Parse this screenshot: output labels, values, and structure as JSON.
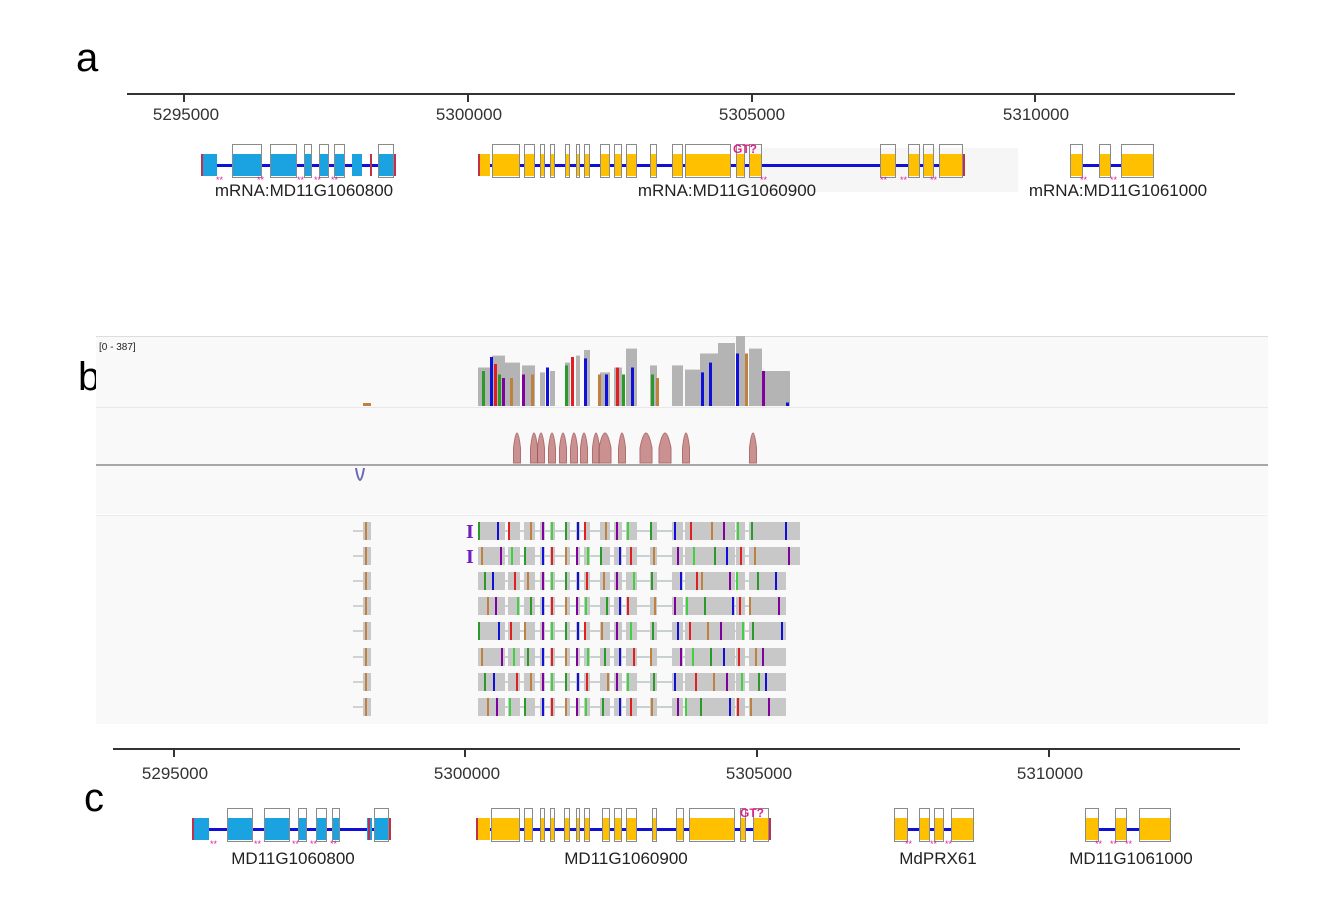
{
  "panels": {
    "a": {
      "letter": "a"
    },
    "b": {
      "letter": "b",
      "coverage_range": "[0 - 387]"
    },
    "c": {
      "letter": "c"
    }
  },
  "chart_data": {
    "type": "genome-browser",
    "units": "bp",
    "axis_ticks": [
      "5295000",
      "5300000",
      "5305000",
      "5310000"
    ],
    "panel_a": {
      "genes": [
        {
          "name": "mRNA:MD11G1060800",
          "color": "#1aa3e0",
          "start": 5294900,
          "end": 5298450,
          "exons": 8
        },
        {
          "name": "mRNA:MD11G1060900",
          "color": "#ffc000",
          "start": 5300250,
          "end": 5308700,
          "exons": 22,
          "annotation": "GT?"
        },
        {
          "name": "mRNA:MD11G1061000",
          "color": "#ffc000",
          "start": 5310600,
          "end": 5312100,
          "exons": 3
        }
      ]
    },
    "panel_b": {
      "tracks": [
        "coverage",
        "junctions-forward",
        "junctions-reverse",
        "alignments"
      ],
      "coverage_max": 387,
      "junction_peaks_forward": 14,
      "junction_peaks_reverse": 1,
      "read_rows": 8
    },
    "panel_c": {
      "genes": [
        {
          "name": "MD11G1060800",
          "color": "#1aa3e0",
          "start": 5294700,
          "end": 5298450,
          "exons": 8
        },
        {
          "name": "MD11G1060900",
          "color": "#ffc000",
          "start": 5300250,
          "end": 5305250,
          "exons": 18,
          "annotation": "GT?"
        },
        {
          "name": "MdPRX61",
          "color": "#ffc000",
          "start": 5307400,
          "end": 5308800,
          "exons": 4
        },
        {
          "name": "MD11G1061000",
          "color": "#ffc000",
          "start": 5310600,
          "end": 5312100,
          "exons": 3
        }
      ]
    }
  },
  "colors": {
    "exon_blue": "#1aa3e0",
    "exon_yellow": "#ffc000",
    "intron": "#1010d8",
    "star": "#e020a0",
    "coverage": "#b4b4b4",
    "junction": "#c48080",
    "junction_rev": "#6a6ab0"
  }
}
